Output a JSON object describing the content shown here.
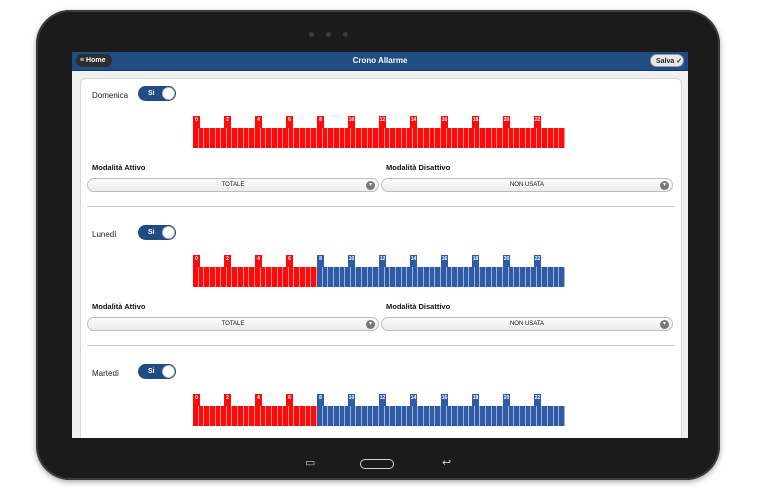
{
  "header": {
    "home_label": "Home",
    "title": "Crono Allarme",
    "save_label": "Salva"
  },
  "toggle_label": "Si",
  "mode_active_label": "Modalità Attivo",
  "mode_inactive_label": "Modalità Disattivo",
  "hour_ticks": [
    "0",
    "2",
    "4",
    "6",
    "8",
    "10",
    "12",
    "14",
    "16",
    "18",
    "20",
    "22"
  ],
  "days": [
    {
      "name": "Domenica",
      "active_mode": "TOTALE",
      "inactive_mode": "NON USATA",
      "slot_states": [
        "red",
        "red",
        "red",
        "red",
        "red",
        "red",
        "red",
        "red",
        "red",
        "red",
        "red",
        "red",
        "red",
        "red",
        "red",
        "red",
        "red",
        "red",
        "red",
        "red",
        "red",
        "red",
        "red",
        "red",
        "red",
        "red",
        "red",
        "red",
        "red",
        "red",
        "red",
        "red",
        "red",
        "red",
        "red",
        "red",
        "red",
        "red",
        "red",
        "red",
        "red",
        "red",
        "red",
        "red",
        "red",
        "red",
        "red",
        "red",
        "red",
        "red",
        "red",
        "red",
        "red",
        "red",
        "red",
        "red",
        "red",
        "red",
        "red",
        "red",
        "red",
        "red",
        "red",
        "red",
        "red",
        "red"
      ]
    },
    {
      "name": "Lunedì",
      "active_mode": "TOTALE",
      "inactive_mode": "NON USATA",
      "slot_states": [
        "red",
        "red",
        "red",
        "red",
        "red",
        "red",
        "red",
        "red",
        "red",
        "red",
        "red",
        "red",
        "red",
        "red",
        "red",
        "red",
        "red",
        "red",
        "red",
        "red",
        "red",
        "red",
        "blue",
        "blue",
        "blue",
        "blue",
        "blue",
        "blue",
        "blue",
        "blue",
        "blue",
        "blue",
        "blue",
        "blue",
        "blue",
        "blue",
        "blue",
        "blue",
        "blue",
        "blue",
        "blue",
        "blue",
        "blue",
        "blue",
        "blue",
        "blue",
        "blue",
        "blue",
        "blue",
        "blue",
        "blue",
        "blue",
        "blue",
        "blue",
        "blue",
        "blue",
        "blue",
        "blue",
        "blue",
        "blue",
        "blue",
        "blue",
        "blue",
        "blue",
        "blue",
        "blue"
      ]
    },
    {
      "name": "Martedì",
      "active_mode": "TOTALE",
      "inactive_mode": "NON USATA",
      "slot_states": [
        "red",
        "red",
        "red",
        "red",
        "red",
        "red",
        "red",
        "red",
        "red",
        "red",
        "red",
        "red",
        "red",
        "red",
        "red",
        "red",
        "red",
        "red",
        "red",
        "red",
        "red",
        "red",
        "blue",
        "blue",
        "blue",
        "blue",
        "blue",
        "blue",
        "blue",
        "blue",
        "blue",
        "blue",
        "blue",
        "blue",
        "blue",
        "blue",
        "blue",
        "blue",
        "blue",
        "blue",
        "blue",
        "blue",
        "blue",
        "blue",
        "blue",
        "blue",
        "blue",
        "blue",
        "blue",
        "blue",
        "blue",
        "blue",
        "blue",
        "blue",
        "blue",
        "blue",
        "blue",
        "blue",
        "blue",
        "blue",
        "blue",
        "blue",
        "blue",
        "blue",
        "blue",
        "blue"
      ]
    }
  ],
  "colors": {
    "active": "#ff0a0a",
    "inactive": "#2f5aa5",
    "header": "#1f4c82"
  },
  "icons": {
    "menu": "menu-icon",
    "check": "check-icon",
    "chevron": "chevron-down-icon"
  }
}
